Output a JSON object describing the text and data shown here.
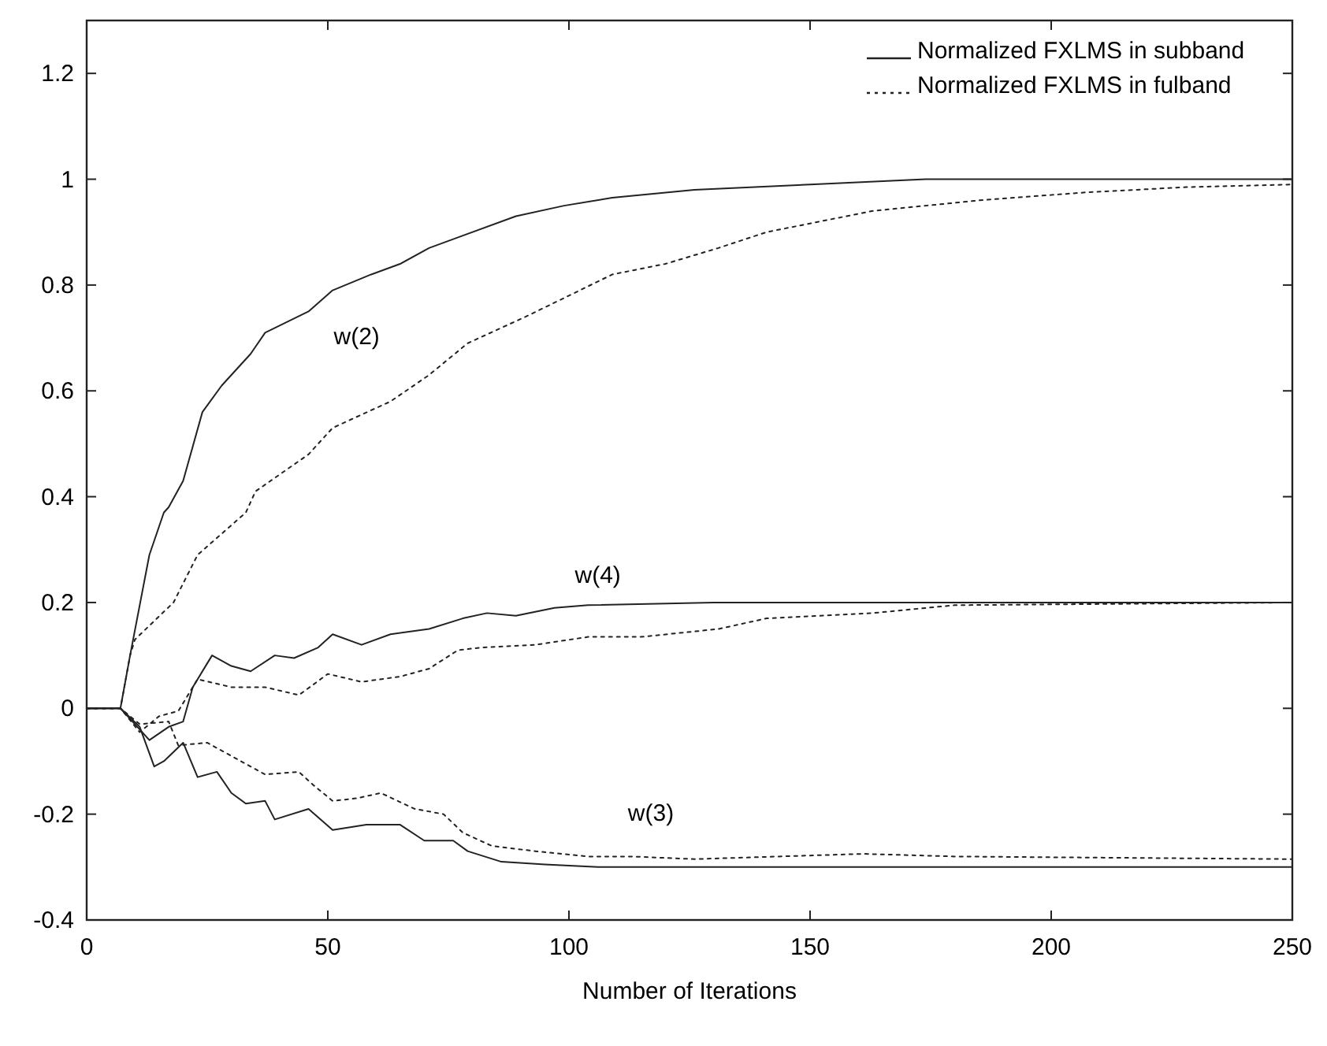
{
  "chart_data": {
    "type": "line",
    "xlabel": "Number of Iterations",
    "xlim": [
      0,
      250
    ],
    "ylim": [
      -0.4,
      1.3
    ],
    "xticks": [
      0,
      50,
      100,
      150,
      200,
      250
    ],
    "yticks": [
      -0.4,
      -0.2,
      0,
      0.2,
      0.4,
      0.6,
      0.8,
      1,
      1.2
    ],
    "grid": false,
    "legend": "top right",
    "marker": "none",
    "series": [
      {
        "name": "Normalized FXLMS in subband",
        "color": "#222222",
        "line_style": "solid",
        "x": [
          0,
          7,
          9,
          13,
          16,
          17,
          20,
          24,
          28,
          34,
          37,
          46,
          51,
          59,
          65,
          71,
          77,
          89,
          99,
          109,
          126,
          150,
          174,
          250
        ],
        "values": [
          0,
          0,
          0.1,
          0.29,
          0.37,
          0.38,
          0.43,
          0.56,
          0.61,
          0.67,
          0.71,
          0.75,
          0.79,
          0.82,
          0.84,
          0.87,
          0.89,
          0.93,
          0.95,
          0.965,
          0.98,
          0.99,
          1,
          1
        ]
      },
      {
        "name": "Normalized FXLMS in fulband",
        "color": "#222222",
        "line_style": "dotted",
        "x": [
          0,
          7,
          9,
          10,
          18,
          23,
          33,
          35,
          46,
          51,
          63,
          71,
          79,
          91,
          100,
          109,
          120,
          131,
          141,
          163,
          185,
          207,
          228,
          250
        ],
        "values": [
          0,
          0,
          0.1,
          0.13,
          0.2,
          0.29,
          0.37,
          0.41,
          0.48,
          0.53,
          0.58,
          0.63,
          0.69,
          0.74,
          0.78,
          0.82,
          0.84,
          0.87,
          0.9,
          0.94,
          0.96,
          0.975,
          0.985,
          0.99
        ]
      },
      {
        "color": "#222222",
        "line_style": "solid",
        "x": [
          0,
          7,
          10,
          13,
          17,
          20,
          22,
          26,
          30,
          34,
          39,
          43,
          48,
          51,
          57,
          63,
          71,
          78,
          83,
          89,
          97,
          104,
          130,
          250
        ],
        "values": [
          0,
          0,
          -0.03,
          -0.06,
          -0.035,
          -0.025,
          0.04,
          0.1,
          0.08,
          0.07,
          0.1,
          0.095,
          0.115,
          0.14,
          0.12,
          0.14,
          0.15,
          0.17,
          0.18,
          0.175,
          0.19,
          0.195,
          0.2,
          0.2
        ]
      },
      {
        "color": "#222222",
        "line_style": "dotted",
        "x": [
          0,
          7,
          11,
          15,
          19,
          23,
          30,
          37,
          44,
          50,
          57,
          65,
          71,
          77,
          82,
          93,
          104,
          115,
          131,
          141,
          163,
          180,
          250
        ],
        "values": [
          0,
          0,
          -0.045,
          -0.015,
          -0.005,
          0.055,
          0.04,
          0.04,
          0.025,
          0.065,
          0.05,
          0.06,
          0.075,
          0.11,
          0.115,
          0.12,
          0.135,
          0.135,
          0.15,
          0.17,
          0.18,
          0.195,
          0.2
        ]
      },
      {
        "color": "#222222",
        "line_style": "solid",
        "x": [
          0,
          7,
          11,
          14,
          16,
          20,
          23,
          27,
          30,
          33,
          37,
          39,
          46,
          51,
          58,
          65,
          70,
          76,
          79,
          86,
          95,
          106,
          130,
          250
        ],
        "values": [
          0,
          0,
          -0.035,
          -0.11,
          -0.1,
          -0.065,
          -0.13,
          -0.12,
          -0.16,
          -0.18,
          -0.175,
          -0.21,
          -0.19,
          -0.23,
          -0.22,
          -0.22,
          -0.25,
          -0.25,
          -0.27,
          -0.29,
          -0.295,
          -0.3,
          -0.3,
          -0.3
        ]
      },
      {
        "color": "#222222",
        "line_style": "dotted",
        "x": [
          0,
          7,
          11,
          17,
          19,
          25,
          31,
          37,
          44,
          47,
          51,
          56,
          61,
          68,
          74,
          78,
          84,
          93,
          104,
          113,
          126,
          161,
          180,
          250
        ],
        "values": [
          0,
          0,
          -0.03,
          -0.025,
          -0.07,
          -0.065,
          -0.095,
          -0.125,
          -0.12,
          -0.145,
          -0.175,
          -0.17,
          -0.16,
          -0.19,
          -0.2,
          -0.235,
          -0.26,
          -0.27,
          -0.28,
          -0.28,
          -0.285,
          -0.275,
          -0.28,
          -0.285
        ]
      }
    ],
    "annotations": [
      "w(2)",
      "w(4)",
      "w(3)"
    ]
  }
}
